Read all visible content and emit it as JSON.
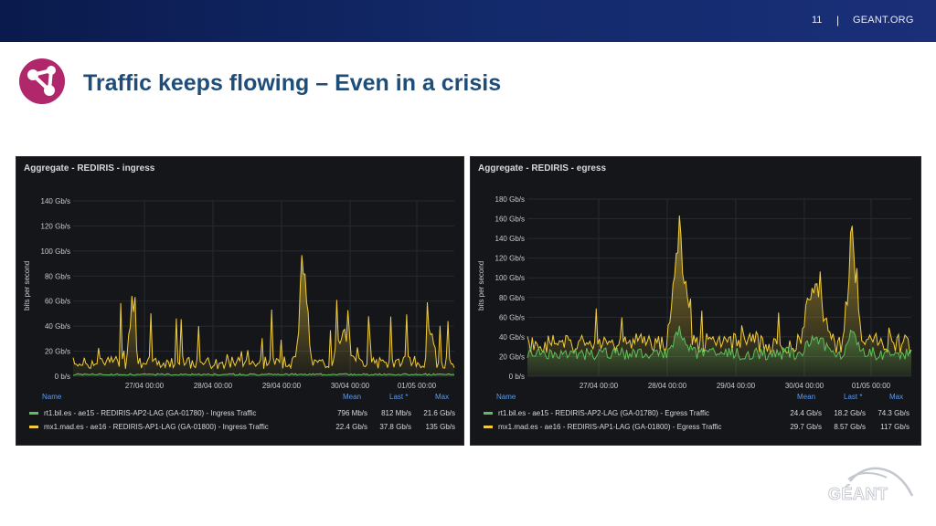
{
  "header": {
    "page_number": "11",
    "separator": "|",
    "site": "GEANT.ORG"
  },
  "slide": {
    "title": "Traffic keeps flowing – Even in a crisis"
  },
  "colors": {
    "accent_magenta": "#b0276b",
    "title_blue": "#1f4d7a",
    "series_green": "#5fbf5a",
    "series_yellow": "#f2cc3a",
    "legend_header_blue": "#5b9bf0"
  },
  "footer": {
    "logo_text": "GÉANT"
  },
  "panels": [
    {
      "title": "Aggregate - REDIRIS - ingress",
      "ylabel": "bits per second",
      "y_ticks": [
        "140 Gb/s",
        "120 Gb/s",
        "100 Gb/s",
        "80 Gb/s",
        "60 Gb/s",
        "40 Gb/s",
        "20 Gb/s",
        "0 b/s"
      ],
      "x_ticks": [
        "27/04 00:00",
        "28/04 00:00",
        "29/04 00:00",
        "30/04 00:00",
        "01/05 00:00"
      ],
      "legend_headers": {
        "name": "Name",
        "mean": "Mean",
        "last": "Last *",
        "max": "Max"
      },
      "legend": [
        {
          "name": "rt1.bil.es - ae15 - REDIRIS-AP2-LAG (GA-01780) - Ingress Traffic",
          "mean": "796 Mb/s",
          "last": "812 Mb/s",
          "max": "21.6 Gb/s"
        },
        {
          "name": "mx1.mad.es - ae16 - REDIRIS-AP1-LAG (GA-01800) - Ingress Traffic",
          "mean": "22.4 Gb/s",
          "last": "37.8 Gb/s",
          "max": "135 Gb/s"
        }
      ]
    },
    {
      "title": "Aggregate - REDIRIS - egress",
      "ylabel": "bits per second",
      "y_ticks": [
        "180 Gb/s",
        "160 Gb/s",
        "140 Gb/s",
        "120 Gb/s",
        "100 Gb/s",
        "80 Gb/s",
        "60 Gb/s",
        "40 Gb/s",
        "20 Gb/s",
        "0 b/s"
      ],
      "x_ticks": [
        "27/04 00:00",
        "28/04 00:00",
        "29/04 00:00",
        "30/04 00:00",
        "01/05 00:00"
      ],
      "legend_headers": {
        "name": "Name",
        "mean": "Mean",
        "last": "Last *",
        "max": "Max"
      },
      "legend": [
        {
          "name": "rt1.bil.es - ae15 - REDIRIS-AP2-LAG (GA-01780) - Egress Traffic",
          "mean": "24.4 Gb/s",
          "last": "18.2 Gb/s",
          "max": "74.3 Gb/s"
        },
        {
          "name": "mx1.mad.es - ae16 - REDIRIS-AP1-LAG (GA-01800) - Egress Traffic",
          "mean": "29.7 Gb/s",
          "last": "8.57 Gb/s",
          "max": "117 Gb/s"
        }
      ]
    }
  ]
}
